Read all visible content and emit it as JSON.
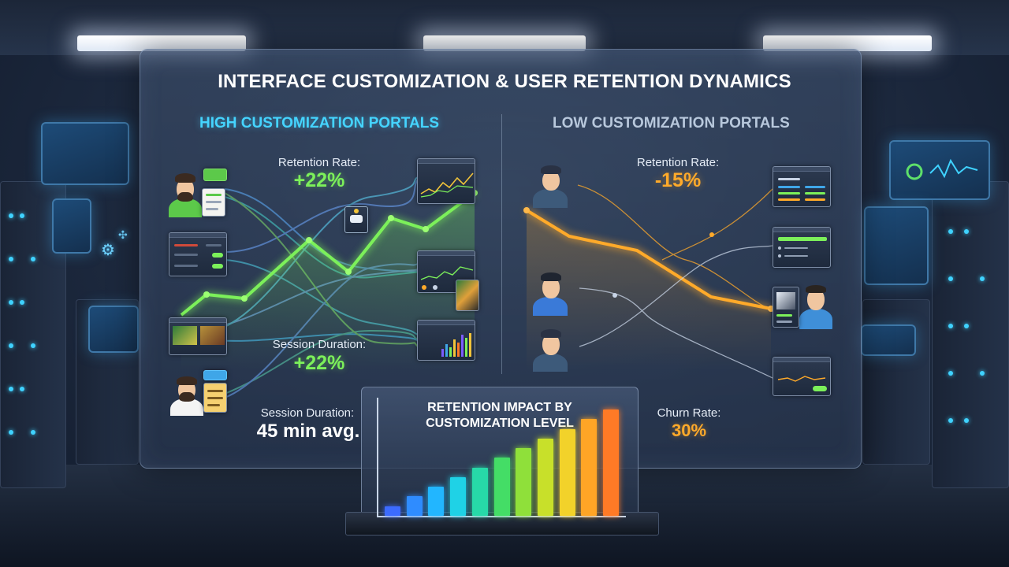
{
  "title": "INTERFACE CUSTOMIZATION & USER RETENTION DYNAMICS",
  "high": {
    "heading": "HIGH CUSTOMIZATION PORTALS",
    "retention_label": "Retention Rate:",
    "retention_value": "+22%",
    "session_label": "Session Duration:",
    "session_value": "+22%",
    "session_avg_label": "Session Duration:",
    "session_avg_value": "45 min avg."
  },
  "low": {
    "heading": "LOW CUSTOMIZATION PORTALS",
    "retention_label": "Retention Rate:",
    "retention_value": "-15%",
    "churn_label": "Churn Rate:",
    "churn_value": "30%"
  },
  "colors": {
    "accent_high": "#7cf05a",
    "accent_low": "#ffaa2a",
    "heading_high": "#45d4ff"
  },
  "chart_data": {
    "type": "bar",
    "title_line1": "RETENTION IMPACT BY",
    "title_line2": "CUSTOMIZATION LEVEL",
    "xlabel": "",
    "ylabel": "",
    "values": [
      1,
      2,
      3,
      4,
      5,
      6,
      7,
      8,
      9,
      10,
      11
    ],
    "colors": [
      "#3c6bff",
      "#2f8cff",
      "#22b6ff",
      "#1fd2e6",
      "#27d9a8",
      "#44dd66",
      "#8fe03a",
      "#c8e02a",
      "#f2d22a",
      "#ffa526",
      "#ff7a26"
    ],
    "grid": false
  }
}
